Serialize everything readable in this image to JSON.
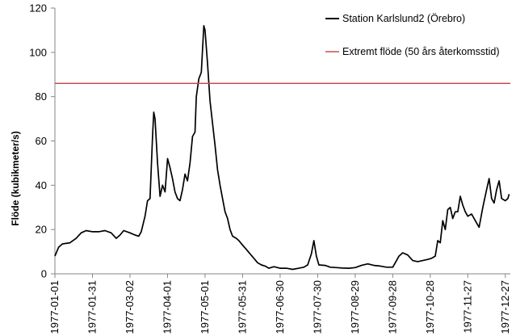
{
  "chart_data": {
    "type": "line",
    "ylabel": "Flöde (kubikmeter/s)",
    "ylim": [
      0,
      120
    ],
    "yticks": [
      "0",
      "20",
      "40",
      "60",
      "80",
      "100",
      "120"
    ],
    "xlim": [
      "1977-01-01",
      "1977-12-31"
    ],
    "xticks": [
      "1977-01-01",
      "1977-01-31",
      "1977-03-02",
      "1977-04-01",
      "1977-05-01",
      "1977-05-31",
      "1977-06-30",
      "1977-07-30",
      "1977-08-29",
      "1977-09-28",
      "1977-10-28",
      "1977-11-27",
      "1977-12-27"
    ],
    "legend_position": "top-right",
    "grid": false,
    "series": [
      {
        "name": "Station Karlslund2 (Örebro)",
        "color": "#000000",
        "points": [
          [
            "1977-01-01",
            8
          ],
          [
            "1977-01-04",
            12
          ],
          [
            "1977-01-07",
            13.5
          ],
          [
            "1977-01-13",
            14
          ],
          [
            "1977-01-18",
            16
          ],
          [
            "1977-01-22",
            18.5
          ],
          [
            "1977-01-26",
            19.5
          ],
          [
            "1977-01-31",
            19
          ],
          [
            "1977-02-05",
            19
          ],
          [
            "1977-02-10",
            19.5
          ],
          [
            "1977-02-15",
            18.5
          ],
          [
            "1977-02-19",
            16
          ],
          [
            "1977-02-22",
            17.5
          ],
          [
            "1977-02-25",
            19.5
          ],
          [
            "1977-03-02",
            18.5
          ],
          [
            "1977-03-06",
            17.5
          ],
          [
            "1977-03-09",
            17
          ],
          [
            "1977-03-11",
            19
          ],
          [
            "1977-03-14",
            26
          ],
          [
            "1977-03-16",
            33
          ],
          [
            "1977-03-18",
            34
          ],
          [
            "1977-03-20",
            62
          ],
          [
            "1977-03-21",
            73
          ],
          [
            "1977-03-22",
            70
          ],
          [
            "1977-03-24",
            50
          ],
          [
            "1977-03-26",
            35
          ],
          [
            "1977-03-28",
            40
          ],
          [
            "1977-03-30",
            37
          ],
          [
            "1977-04-01",
            52
          ],
          [
            "1977-04-03",
            48
          ],
          [
            "1977-04-05",
            43
          ],
          [
            "1977-04-07",
            37
          ],
          [
            "1977-04-09",
            34
          ],
          [
            "1977-04-11",
            33
          ],
          [
            "1977-04-13",
            38
          ],
          [
            "1977-04-15",
            45
          ],
          [
            "1977-04-17",
            42
          ],
          [
            "1977-04-19",
            50
          ],
          [
            "1977-04-21",
            62
          ],
          [
            "1977-04-23",
            64
          ],
          [
            "1977-04-24",
            80
          ],
          [
            "1977-04-26",
            88
          ],
          [
            "1977-04-28",
            91
          ],
          [
            "1977-04-30",
            112
          ],
          [
            "1977-05-01",
            110
          ],
          [
            "1977-05-03",
            95
          ],
          [
            "1977-05-05",
            78
          ],
          [
            "1977-05-07",
            68
          ],
          [
            "1977-05-09",
            58
          ],
          [
            "1977-05-11",
            47
          ],
          [
            "1977-05-13",
            40
          ],
          [
            "1977-05-15",
            34
          ],
          [
            "1977-05-17",
            28
          ],
          [
            "1977-05-19",
            25
          ],
          [
            "1977-05-21",
            20
          ],
          [
            "1977-05-23",
            17
          ],
          [
            "1977-05-26",
            16
          ],
          [
            "1977-05-28",
            15
          ],
          [
            "1977-05-31",
            13
          ],
          [
            "1977-06-03",
            11
          ],
          [
            "1977-06-06",
            9
          ],
          [
            "1977-06-09",
            7
          ],
          [
            "1977-06-12",
            5
          ],
          [
            "1977-06-15",
            4
          ],
          [
            "1977-06-18",
            3.5
          ],
          [
            "1977-06-21",
            2.5
          ],
          [
            "1977-06-25",
            3.2
          ],
          [
            "1977-06-30",
            2.5
          ],
          [
            "1977-07-05",
            2.5
          ],
          [
            "1977-07-10",
            2
          ],
          [
            "1977-07-15",
            2.5
          ],
          [
            "1977-07-19",
            3
          ],
          [
            "1977-07-22",
            4
          ],
          [
            "1977-07-25",
            9
          ],
          [
            "1977-07-27",
            15
          ],
          [
            "1977-07-29",
            8
          ],
          [
            "1977-07-31",
            4
          ],
          [
            "1977-08-05",
            3.8
          ],
          [
            "1977-08-09",
            3
          ],
          [
            "1977-08-14",
            2.8
          ],
          [
            "1977-08-19",
            2.6
          ],
          [
            "1977-08-24",
            2.5
          ],
          [
            "1977-08-29",
            2.8
          ],
          [
            "1977-09-03",
            3.8
          ],
          [
            "1977-09-08",
            4.5
          ],
          [
            "1977-09-13",
            3.8
          ],
          [
            "1977-09-18",
            3.5
          ],
          [
            "1977-09-23",
            3
          ],
          [
            "1977-09-28",
            3
          ],
          [
            "1977-10-03",
            8
          ],
          [
            "1977-10-06",
            9.5
          ],
          [
            "1977-10-10",
            8.5
          ],
          [
            "1977-10-14",
            6
          ],
          [
            "1977-10-18",
            5.5
          ],
          [
            "1977-10-22",
            6
          ],
          [
            "1977-10-26",
            6.5
          ],
          [
            "1977-10-29",
            7
          ],
          [
            "1977-11-01",
            8
          ],
          [
            "1977-11-03",
            15
          ],
          [
            "1977-11-05",
            14
          ],
          [
            "1977-11-07",
            24
          ],
          [
            "1977-11-09",
            20
          ],
          [
            "1977-11-11",
            29
          ],
          [
            "1977-11-13",
            30
          ],
          [
            "1977-11-15",
            25
          ],
          [
            "1977-11-17",
            28
          ],
          [
            "1977-11-19",
            28
          ],
          [
            "1977-11-21",
            35
          ],
          [
            "1977-11-23",
            31
          ],
          [
            "1977-11-25",
            28
          ],
          [
            "1977-11-27",
            26
          ],
          [
            "1977-11-30",
            27
          ],
          [
            "1977-12-03",
            24
          ],
          [
            "1977-12-06",
            21
          ],
          [
            "1977-12-09",
            30
          ],
          [
            "1977-12-12",
            38
          ],
          [
            "1977-12-14",
            43
          ],
          [
            "1977-12-16",
            34
          ],
          [
            "1977-12-18",
            32
          ],
          [
            "1977-12-20",
            38
          ],
          [
            "1977-12-22",
            42
          ],
          [
            "1977-12-24",
            34
          ],
          [
            "1977-12-27",
            33
          ],
          [
            "1977-12-29",
            34
          ],
          [
            "1977-12-30",
            36
          ]
        ]
      },
      {
        "name": "Extremt flöde (50 års återkomsstid)",
        "color": "#c0504d",
        "points": [
          [
            "1977-01-01",
            86
          ],
          [
            "1977-12-31",
            86
          ]
        ]
      }
    ]
  }
}
